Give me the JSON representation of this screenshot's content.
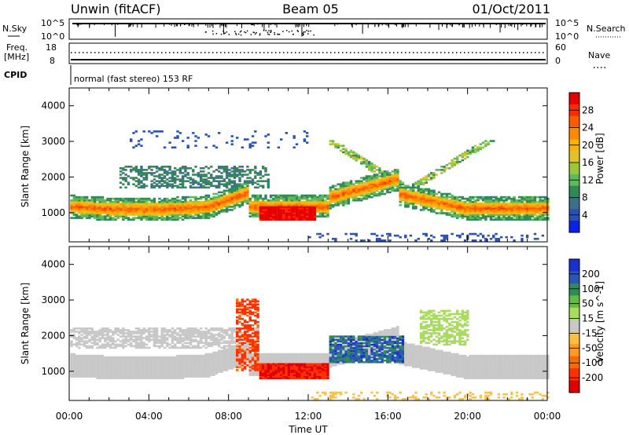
{
  "header": {
    "station": "Unwin (fitACF)",
    "beam": "Beam 05",
    "date": "01/Oct/2011"
  },
  "aux_panels": {
    "nsky_label": "N.Sky",
    "nsky_ticks": [
      "10^5",
      "10^0"
    ],
    "nsearch_label": "N.Search",
    "nsearch_ticks": [
      "10^5",
      "10^0"
    ],
    "freq_label": "Freq.",
    "freq_unit": "[MHz]",
    "freq_ticks": [
      "18",
      "8"
    ],
    "nave_label": "Nave",
    "nave_ticks": [
      "60",
      "0"
    ],
    "cpid_label": "CPID",
    "cpid_text": "normal (fast stereo) 153 RF"
  },
  "chart_data": [
    {
      "type": "heatmap",
      "panel": "power",
      "ylabel": "Slant Range [km]",
      "xlabel": "",
      "x_ticks": [
        "00:00",
        "04:00",
        "08:00",
        "12:00",
        "16:00",
        "20:00",
        "00:00"
      ],
      "y_ticks": [
        1000,
        2000,
        3000,
        4000
      ],
      "ylim": [
        180,
        4500
      ],
      "xlim_hours": [
        0,
        24
      ],
      "colorbar": {
        "label": "Power [dB]",
        "ticks": [
          "4",
          "8",
          "12",
          "16",
          "20",
          "24",
          "28"
        ],
        "range": [
          0,
          30
        ],
        "colors": [
          "#0a22e8",
          "#2a50b4",
          "#3b6f8a",
          "#2e8b57",
          "#5fb85a",
          "#9ac83a",
          "#e0c22a",
          "#ffb000",
          "#ff8a00",
          "#ff5a00",
          "#ff2a00",
          "#e60000"
        ]
      },
      "features": [
        {
          "desc": "main F-region band",
          "start_h": 0,
          "end_h": 24,
          "range_km_start": 1050,
          "range_km_end": 1150,
          "power_db": 22
        },
        {
          "desc": "strong echo patch",
          "start_h": 9.5,
          "end_h": 12.5,
          "range_km": 950,
          "power_db": 28
        },
        {
          "desc": "upper diffuse scatter",
          "start_h": 2.5,
          "end_h": 10,
          "range_km": 1900,
          "power_db": 8
        }
      ]
    },
    {
      "type": "heatmap",
      "panel": "velocity",
      "ylabel": "Slant Range [km]",
      "xlabel": "Time UT",
      "x_ticks": [
        "00:00",
        "04:00",
        "08:00",
        "12:00",
        "16:00",
        "20:00",
        "00:00"
      ],
      "y_ticks": [
        1000,
        2000,
        3000,
        4000
      ],
      "ylim": [
        180,
        4500
      ],
      "xlim_hours": [
        0,
        24
      ],
      "colorbar": {
        "label": "Velocity [m s^-1]",
        "ticks": [
          "200",
          "100",
          "50",
          "15",
          "-15",
          "-50",
          "-100",
          "-200"
        ],
        "range": [
          -250,
          250
        ],
        "colors": [
          "#1a2fd0",
          "#2a56b8",
          "#2e8b57",
          "#5fbf3a",
          "#a8dc5a",
          "#c8c8c8",
          "#ffc040",
          "#ff9a20",
          "#ff6a00",
          "#ff3000",
          "#e00000"
        ]
      },
      "features": [
        {
          "desc": "ground scatter (near zero velocity)",
          "start_h": 0,
          "end_h": 9,
          "range_km": 1100,
          "velocity": 0
        },
        {
          "desc": "negative velocity patch",
          "start_h": 9.5,
          "end_h": 13,
          "range_km": 950,
          "velocity": -200
        },
        {
          "desc": "positive velocity patch",
          "start_h": 13,
          "end_h": 16.8,
          "range_km": 1600,
          "velocity": 150
        }
      ]
    }
  ]
}
